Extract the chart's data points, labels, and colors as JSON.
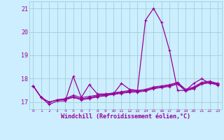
{
  "xlabel": "Windchill (Refroidissement éolien,°C)",
  "bg_color": "#cceeff",
  "line_color": "#990099",
  "grid_color": "#99cccc",
  "x_values": [
    0,
    1,
    2,
    3,
    4,
    5,
    6,
    7,
    8,
    9,
    10,
    11,
    12,
    13,
    14,
    15,
    16,
    17,
    18,
    19,
    20,
    21,
    22,
    23
  ],
  "series": [
    [
      17.7,
      17.2,
      16.9,
      17.05,
      17.05,
      18.1,
      17.2,
      17.75,
      17.35,
      17.35,
      17.35,
      17.8,
      17.55,
      17.5,
      20.5,
      21.0,
      20.4,
      19.2,
      17.5,
      17.5,
      17.8,
      18.0,
      17.8,
      17.8
    ],
    [
      17.7,
      17.2,
      17.0,
      17.1,
      17.15,
      17.3,
      17.2,
      17.25,
      17.3,
      17.35,
      17.4,
      17.45,
      17.5,
      17.5,
      17.55,
      17.65,
      17.7,
      17.75,
      17.85,
      17.55,
      17.65,
      17.85,
      17.9,
      17.8
    ],
    [
      17.7,
      17.2,
      17.0,
      17.1,
      17.15,
      17.25,
      17.15,
      17.2,
      17.28,
      17.32,
      17.38,
      17.42,
      17.47,
      17.48,
      17.52,
      17.62,
      17.67,
      17.72,
      17.82,
      17.52,
      17.62,
      17.82,
      17.87,
      17.77
    ],
    [
      17.7,
      17.2,
      17.0,
      17.1,
      17.12,
      17.22,
      17.12,
      17.17,
      17.25,
      17.3,
      17.35,
      17.4,
      17.45,
      17.45,
      17.5,
      17.6,
      17.65,
      17.7,
      17.8,
      17.5,
      17.6,
      17.8,
      17.85,
      17.75
    ],
    [
      17.7,
      17.2,
      17.0,
      17.1,
      17.1,
      17.2,
      17.1,
      17.15,
      17.22,
      17.27,
      17.33,
      17.37,
      17.42,
      17.43,
      17.47,
      17.57,
      17.62,
      17.67,
      17.77,
      17.47,
      17.57,
      17.77,
      17.82,
      17.72
    ]
  ],
  "ylim": [
    16.7,
    21.3
  ],
  "yticks": [
    17,
    18,
    19,
    20,
    21
  ],
  "xtick_labels": [
    "0",
    "1",
    "2",
    "3",
    "4",
    "5",
    "6",
    "7",
    "8",
    "9",
    "10",
    "11",
    "12",
    "13",
    "14",
    "15",
    "16",
    "17",
    "18",
    "19",
    "20",
    "21",
    "22",
    "23"
  ]
}
